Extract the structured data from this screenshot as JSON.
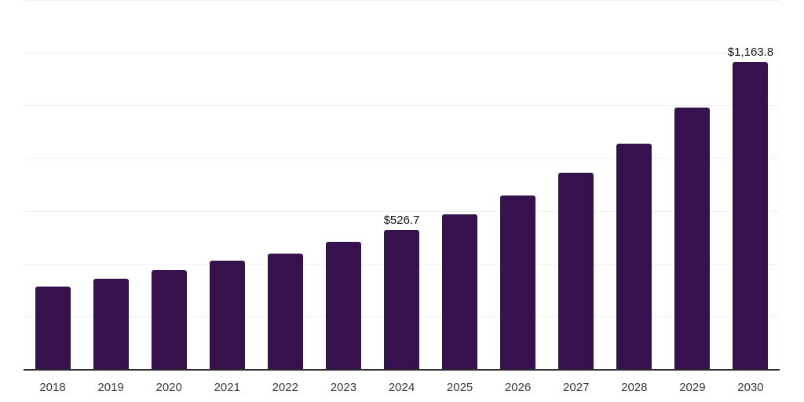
{
  "chart_data": {
    "type": "bar",
    "title": "",
    "xlabel": "",
    "ylabel": "",
    "categories": [
      "2018",
      "2019",
      "2020",
      "2021",
      "2022",
      "2023",
      "2024",
      "2025",
      "2026",
      "2027",
      "2028",
      "2029",
      "2030"
    ],
    "values": [
      314,
      344,
      374,
      410,
      437,
      482,
      526.7,
      586,
      658,
      745,
      856,
      993,
      1163.8
    ],
    "value_labels": [
      {
        "category": "2024",
        "text": "$526.7"
      },
      {
        "category": "2030",
        "text": "$1,163.8"
      }
    ],
    "ylim": [
      0,
      1400
    ],
    "gridline_step": 200,
    "grid": "horizontal-only",
    "legend": "none",
    "y_axis_tick_labels_visible": false,
    "colors": {
      "bar": "#36114D",
      "axis_line": "#2e2e2e",
      "gridline": "#f1f1f1",
      "tick_label": "#3a3a3a",
      "value_label": "#161616",
      "background": "#ffffff"
    }
  }
}
